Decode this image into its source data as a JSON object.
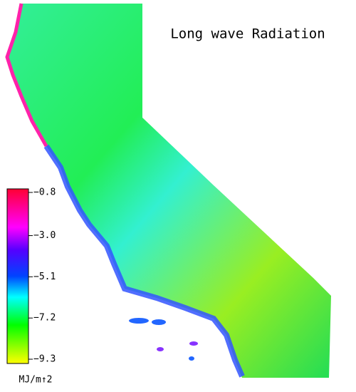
{
  "title": "Long wave Radiation",
  "colorbar": {
    "ticks": [
      {
        "value": -0.8,
        "label": "−0.8"
      },
      {
        "value": -3.0,
        "label": "−3.0"
      },
      {
        "value": -5.1,
        "label": "−5.1"
      },
      {
        "value": -7.2,
        "label": "−7.2"
      },
      {
        "value": -9.3,
        "label": "−9.3"
      }
    ],
    "unit": "MJ/m↑2"
  }
}
